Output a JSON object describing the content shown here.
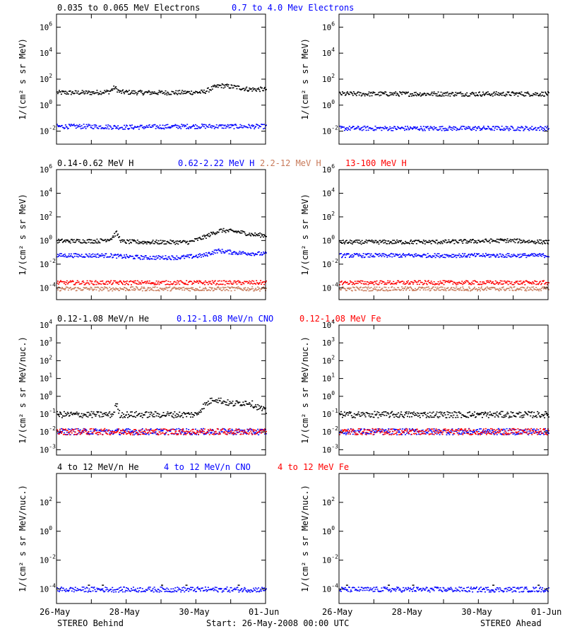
{
  "chart_data": [
    {
      "type": "scatter",
      "panel": "electrons-behind",
      "ylabel": "1/(cm² s sr MeV)",
      "ylim": [
        0.001,
        10000000
      ],
      "log_y": true,
      "y_ticks": [
        {
          "exp": "-2"
        },
        {
          "exp": "0"
        },
        {
          "exp": "2"
        },
        {
          "exp": "4"
        },
        {
          "exp": "6"
        }
      ],
      "x_ticks": [],
      "legend": [
        {
          "label": "0.035 to 0.065 MeV Electrons",
          "color": "#000000"
        },
        {
          "label": "0.7 to 4.0 Mev Electrons",
          "color": "#0000ff"
        }
      ],
      "series": [
        {
          "name": "0.035 to 0.065 MeV Electrons",
          "color": "#000000",
          "points": [
            [
              0,
              10
            ],
            [
              1,
              10
            ],
            [
              1.5,
              12
            ],
            [
              1.65,
              25
            ],
            [
              1.8,
              11
            ],
            [
              2.5,
              10
            ],
            [
              3,
              10
            ],
            [
              3.5,
              10
            ],
            [
              4.2,
              11
            ],
            [
              4.5,
              25
            ],
            [
              4.7,
              35
            ],
            [
              5.2,
              25
            ],
            [
              5.5,
              18
            ],
            [
              6,
              18
            ]
          ]
        },
        {
          "name": "0.7 to 4.0 Mev Electrons",
          "color": "#0000ff",
          "points": [
            [
              0,
              0.025
            ],
            [
              1,
              0.025
            ],
            [
              2,
              0.022
            ],
            [
              3,
              0.024
            ],
            [
              4,
              0.026
            ],
            [
              5,
              0.025
            ],
            [
              6,
              0.025
            ]
          ]
        }
      ]
    },
    {
      "type": "scatter",
      "panel": "electrons-ahead",
      "ylabel": "1/(cm² s sr MeV)",
      "ylim": [
        0.001,
        10000000
      ],
      "log_y": true,
      "y_ticks": [
        {
          "exp": "-2"
        },
        {
          "exp": "0"
        },
        {
          "exp": "2"
        },
        {
          "exp": "4"
        },
        {
          "exp": "6"
        }
      ],
      "x_ticks": [],
      "legend": [],
      "series": [
        {
          "name": "0.035 to 0.065 MeV Electrons",
          "color": "#000000",
          "points": [
            [
              0,
              8
            ],
            [
              2,
              8
            ],
            [
              4,
              8
            ],
            [
              6,
              8
            ]
          ]
        },
        {
          "name": "0.7 to 4.0 Mev Electrons",
          "color": "#0000ff",
          "points": [
            [
              0,
              0.018
            ],
            [
              2,
              0.018
            ],
            [
              4,
              0.018
            ],
            [
              6,
              0.018
            ]
          ]
        }
      ]
    },
    {
      "type": "scatter",
      "panel": "protons-behind",
      "ylabel": "1/(cm² s sr MeV)",
      "ylim": [
        1e-05,
        1000000
      ],
      "log_y": true,
      "y_ticks": [
        {
          "exp": "-4"
        },
        {
          "exp": "-2"
        },
        {
          "exp": "0"
        },
        {
          "exp": "2"
        },
        {
          "exp": "4"
        },
        {
          "exp": "6"
        }
      ],
      "x_ticks": [],
      "legend": [
        {
          "label": "0.14-0.62 MeV H",
          "color": "#000000"
        },
        {
          "label": "0.62-2.22 MeV H",
          "color": "#0000ff"
        },
        {
          "label": "2.2-12 MeV H",
          "color": "#c87a5a"
        },
        {
          "label": "13-100 MeV H",
          "color": "#ff0000"
        }
      ],
      "series": [
        {
          "name": "0.14-0.62 MeV H",
          "color": "#000000",
          "points": [
            [
              0,
              1.0
            ],
            [
              1.2,
              1.0
            ],
            [
              1.55,
              1.6
            ],
            [
              1.7,
              5
            ],
            [
              1.85,
              0.9
            ],
            [
              2.5,
              0.8
            ],
            [
              3,
              0.8
            ],
            [
              3.8,
              0.8
            ],
            [
              4.2,
              2
            ],
            [
              4.5,
              5
            ],
            [
              4.7,
              8
            ],
            [
              5.2,
              6
            ],
            [
              5.6,
              3.5
            ],
            [
              6,
              3
            ]
          ]
        },
        {
          "name": "0.62-2.22 MeV H",
          "color": "#0000ff",
          "points": [
            [
              0,
              0.06
            ],
            [
              1.5,
              0.06
            ],
            [
              1.8,
              0.05
            ],
            [
              2.5,
              0.04
            ],
            [
              3.5,
              0.04
            ],
            [
              4.2,
              0.06
            ],
            [
              4.6,
              0.15
            ],
            [
              5.2,
              0.1
            ],
            [
              6,
              0.08
            ]
          ]
        },
        {
          "name": "2.2-12 MeV H",
          "color": "#c87a5a",
          "points": [
            [
              0,
              9e-05
            ],
            [
              3,
              9e-05
            ],
            [
              6,
              9e-05
            ]
          ]
        },
        {
          "name": "13-100 MeV H",
          "color": "#ff0000",
          "points": [
            [
              0,
              0.0003
            ],
            [
              3,
              0.0003
            ],
            [
              6,
              0.0003
            ]
          ]
        }
      ]
    },
    {
      "type": "scatter",
      "panel": "protons-ahead",
      "ylabel": "1/(cm² s sr MeV)",
      "ylim": [
        1e-05,
        1000000
      ],
      "log_y": true,
      "y_ticks": [
        {
          "exp": "-4"
        },
        {
          "exp": "-2"
        },
        {
          "exp": "0"
        },
        {
          "exp": "2"
        },
        {
          "exp": "4"
        },
        {
          "exp": "6"
        }
      ],
      "x_ticks": [],
      "legend": [],
      "series": [
        {
          "name": "0.14-0.62 MeV H",
          "color": "#000000",
          "points": [
            [
              0,
              0.8
            ],
            [
              3,
              0.85
            ],
            [
              4.8,
              1.1
            ],
            [
              6,
              0.8
            ]
          ]
        },
        {
          "name": "0.62-2.22 MeV H",
          "color": "#0000ff",
          "points": [
            [
              0,
              0.06
            ],
            [
              3,
              0.06
            ],
            [
              6,
              0.06
            ]
          ]
        },
        {
          "name": "2.2-12 MeV H",
          "color": "#c87a5a",
          "points": [
            [
              0,
              9e-05
            ],
            [
              6,
              9e-05
            ]
          ]
        },
        {
          "name": "13-100 MeV H",
          "color": "#ff0000",
          "points": [
            [
              0,
              0.0003
            ],
            [
              6,
              0.0003
            ]
          ]
        }
      ]
    },
    {
      "type": "scatter",
      "panel": "ions-behind",
      "ylabel": "1/(cm² s sr MeV/nuc.)",
      "ylim": [
        0.0005,
        10000
      ],
      "log_y": true,
      "y_ticks": [
        {
          "exp": "-3"
        },
        {
          "exp": "-2"
        },
        {
          "exp": "-1"
        },
        {
          "exp": "0"
        },
        {
          "exp": "1"
        },
        {
          "exp": "2"
        },
        {
          "exp": "3"
        },
        {
          "exp": "4"
        }
      ],
      "x_ticks": [],
      "legend": [
        {
          "label": "0.12-1.08 MeV/n He",
          "color": "#000000"
        },
        {
          "label": "0.12-1.08 MeV/n CNO",
          "color": "#0000ff"
        },
        {
          "label": "0.12-1.08 MeV Fe",
          "color": "#ff0000"
        }
      ],
      "series": [
        {
          "name": "0.12-1.08 MeV/n He",
          "color": "#000000",
          "points": [
            [
              0,
              0.1
            ],
            [
              1.6,
              0.1
            ],
            [
              1.7,
              0.4
            ],
            [
              1.8,
              0.1
            ],
            [
              4,
              0.1
            ],
            [
              4.2,
              0.3
            ],
            [
              4.5,
              0.8
            ],
            [
              5,
              0.4
            ],
            [
              5.5,
              0.5
            ],
            [
              6,
              0.15
            ]
          ]
        },
        {
          "name": "0.12-1.08 MeV/n CNO",
          "color": "#0000ff",
          "points": [
            [
              0,
              0.011
            ],
            [
              6,
              0.011
            ]
          ]
        },
        {
          "name": "0.12-1.08 MeV Fe",
          "color": "#ff0000",
          "points": [
            [
              0,
              0.011
            ],
            [
              6,
              0.011
            ]
          ]
        }
      ]
    },
    {
      "type": "scatter",
      "panel": "ions-ahead",
      "ylabel": "1/(cm² s sr MeV/nuc.)",
      "ylim": [
        0.0005,
        10000
      ],
      "log_y": true,
      "y_ticks": [
        {
          "exp": "-3"
        },
        {
          "exp": "-2"
        },
        {
          "exp": "-1"
        },
        {
          "exp": "0"
        },
        {
          "exp": "1"
        },
        {
          "exp": "2"
        },
        {
          "exp": "3"
        },
        {
          "exp": "4"
        }
      ],
      "x_ticks": [],
      "legend": [],
      "series": [
        {
          "name": "0.12-1.08 MeV/n He",
          "color": "#000000",
          "points": [
            [
              0,
              0.1
            ],
            [
              6,
              0.1
            ]
          ]
        },
        {
          "name": "0.12-1.08 MeV/n CNO",
          "color": "#0000ff",
          "points": [
            [
              0,
              0.011
            ],
            [
              6,
              0.011
            ]
          ]
        },
        {
          "name": "0.12-1.08 MeV Fe",
          "color": "#ff0000",
          "points": [
            [
              0,
              0.011
            ],
            [
              6,
              0.011
            ]
          ]
        }
      ]
    },
    {
      "type": "scatter",
      "panel": "high-ions-behind",
      "ylabel": "1/(cm² s sr MeV/nuc.)",
      "ylim": [
        1e-05,
        10000
      ],
      "log_y": true,
      "y_ticks": [
        {
          "exp": "-4"
        },
        {
          "exp": "-2"
        },
        {
          "exp": "0"
        },
        {
          "exp": "2"
        }
      ],
      "x_ticks": [
        "26-May",
        "28-May",
        "30-May",
        "01-Jun"
      ],
      "legend": [
        {
          "label": "4 to 12 MeV/n He",
          "color": "#000000"
        },
        {
          "label": "4 to 12 MeV/n CNO",
          "color": "#0000ff"
        },
        {
          "label": "4 to 12 MeV Fe",
          "color": "#ff0000"
        }
      ],
      "series": [
        {
          "name": "4 to 12 MeV/n He",
          "color": "#000000",
          "points": [
            [
              0.9,
              0.0002
            ],
            [
              1.3,
              0.0002
            ],
            [
              3.0,
              0.0002
            ],
            [
              3.7,
              0.0002
            ],
            [
              5.2,
              0.0002
            ]
          ]
        },
        {
          "name": "4 to 12 MeV/n CNO",
          "color": "#0000ff",
          "points": [
            [
              0,
              0.0001
            ],
            [
              6,
              0.0001
            ]
          ]
        }
      ]
    },
    {
      "type": "scatter",
      "panel": "high-ions-ahead",
      "ylabel": "1/(cm² s sr MeV/nuc.)",
      "ylim": [
        1e-05,
        10000
      ],
      "log_y": true,
      "y_ticks": [
        {
          "exp": "-4"
        },
        {
          "exp": "-2"
        },
        {
          "exp": "0"
        },
        {
          "exp": "2"
        }
      ],
      "x_ticks": [
        "26-May",
        "28-May",
        "30-May",
        "01-Jun"
      ],
      "legend": [],
      "series": [
        {
          "name": "4 to 12 MeV/n He",
          "color": "#000000",
          "points": [
            [
              0.2,
              0.0002
            ],
            [
              1.4,
              0.0002
            ],
            [
              2.1,
              0.0002
            ],
            [
              4.4,
              0.0002
            ],
            [
              5.7,
              0.0002
            ]
          ]
        },
        {
          "name": "4 to 12 MeV/n CNO",
          "color": "#0000ff",
          "points": [
            [
              0,
              0.0001
            ],
            [
              6,
              0.0001
            ]
          ]
        }
      ]
    }
  ],
  "footer": {
    "left": "STEREO Behind",
    "center": "Start: 26-May-2008 00:00 UTC",
    "right": "STEREO Ahead"
  }
}
